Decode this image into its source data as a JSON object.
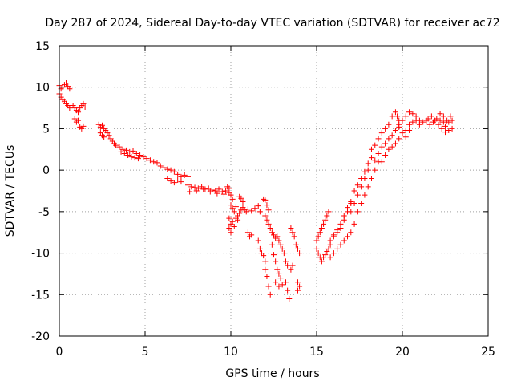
{
  "chart_data": {
    "type": "scatter",
    "title": "Day 287 of 2024, Sidereal Day-to-day VTEC variation (SDTVAR) for receiver ac72",
    "xlabel": "GPS time / hours",
    "ylabel": "SDTVAR / TECUs",
    "xlim": [
      0,
      25
    ],
    "ylim": [
      -20,
      15
    ],
    "xticks": [
      0,
      5,
      10,
      15,
      20,
      25
    ],
    "yticks": [
      -20,
      -15,
      -10,
      -5,
      0,
      5,
      10,
      15
    ],
    "xtick_labels": [
      "0",
      "5",
      "10",
      "15",
      "20",
      "25"
    ],
    "ytick_labels": [
      "-20",
      "-15",
      "-10",
      "-5",
      "0",
      "5",
      "10",
      "15"
    ],
    "grid": true,
    "marker": "+",
    "color": "#ff0000",
    "series": [
      {
        "name": "SDTVAR",
        "points": [
          [
            0.0,
            10.2
          ],
          [
            0.1,
            9.8
          ],
          [
            0.2,
            10.0
          ],
          [
            0.3,
            10.3
          ],
          [
            0.4,
            10.5
          ],
          [
            0.5,
            10.1
          ],
          [
            0.6,
            9.8
          ],
          [
            0.0,
            9.2
          ],
          [
            0.1,
            8.8
          ],
          [
            0.2,
            8.5
          ],
          [
            0.3,
            8.3
          ],
          [
            0.4,
            8.0
          ],
          [
            0.5,
            7.8
          ],
          [
            0.6,
            7.5
          ],
          [
            0.8,
            7.8
          ],
          [
            0.9,
            7.5
          ],
          [
            1.0,
            7.2
          ],
          [
            1.1,
            7.0
          ],
          [
            1.2,
            7.5
          ],
          [
            1.3,
            7.8
          ],
          [
            1.4,
            8.0
          ],
          [
            1.5,
            7.6
          ],
          [
            0.9,
            6.2
          ],
          [
            1.0,
            5.8
          ],
          [
            1.1,
            6.0
          ],
          [
            1.2,
            5.2
          ],
          [
            1.3,
            5.0
          ],
          [
            1.4,
            5.3
          ],
          [
            2.3,
            5.5
          ],
          [
            2.4,
            5.2
          ],
          [
            2.5,
            5.4
          ],
          [
            2.6,
            5.0
          ],
          [
            2.7,
            4.8
          ],
          [
            2.8,
            4.5
          ],
          [
            2.9,
            4.2
          ],
          [
            2.4,
            4.5
          ],
          [
            2.5,
            4.2
          ],
          [
            2.6,
            4.0
          ],
          [
            3.0,
            3.8
          ],
          [
            3.1,
            3.5
          ],
          [
            3.2,
            3.2
          ],
          [
            3.3,
            3.0
          ],
          [
            3.5,
            2.8
          ],
          [
            3.7,
            2.5
          ],
          [
            3.9,
            2.4
          ],
          [
            4.1,
            2.2
          ],
          [
            4.3,
            2.3
          ],
          [
            4.5,
            2.0
          ],
          [
            4.7,
            1.8
          ],
          [
            3.6,
            2.2
          ],
          [
            3.8,
            2.0
          ],
          [
            4.0,
            1.8
          ],
          [
            4.2,
            1.6
          ],
          [
            4.4,
            1.5
          ],
          [
            4.6,
            1.4
          ],
          [
            4.9,
            1.6
          ],
          [
            5.1,
            1.4
          ],
          [
            5.3,
            1.2
          ],
          [
            5.5,
            1.0
          ],
          [
            5.7,
            0.9
          ],
          [
            5.9,
            0.5
          ],
          [
            6.1,
            0.3
          ],
          [
            6.3,
            0.1
          ],
          [
            6.5,
            0.0
          ],
          [
            6.7,
            -0.2
          ],
          [
            6.9,
            -0.5
          ],
          [
            7.1,
            -0.8
          ],
          [
            6.3,
            -1.0
          ],
          [
            6.5,
            -1.3
          ],
          [
            6.7,
            -1.5
          ],
          [
            6.9,
            -1.2
          ],
          [
            7.1,
            -1.4
          ],
          [
            7.3,
            -0.6
          ],
          [
            7.5,
            -0.8
          ],
          [
            7.5,
            -1.8
          ],
          [
            7.7,
            -2.0
          ],
          [
            7.9,
            -2.1
          ],
          [
            8.1,
            -2.2
          ],
          [
            8.3,
            -2.0
          ],
          [
            8.5,
            -2.3
          ],
          [
            8.7,
            -2.2
          ],
          [
            8.9,
            -2.4
          ],
          [
            9.1,
            -2.5
          ],
          [
            9.3,
            -2.3
          ],
          [
            9.5,
            -2.6
          ],
          [
            9.7,
            -2.5
          ],
          [
            9.9,
            -2.7
          ],
          [
            7.6,
            -2.6
          ],
          [
            8.0,
            -2.5
          ],
          [
            8.4,
            -2.3
          ],
          [
            8.8,
            -2.6
          ],
          [
            9.2,
            -2.8
          ],
          [
            9.6,
            -2.9
          ],
          [
            9.8,
            -2.0
          ],
          [
            9.9,
            -2.2
          ],
          [
            10.0,
            -3.0
          ],
          [
            10.1,
            -3.5
          ],
          [
            10.0,
            -4.2
          ],
          [
            10.1,
            -4.6
          ],
          [
            10.2,
            -5.0
          ],
          [
            10.3,
            -4.4
          ],
          [
            10.4,
            -5.5
          ],
          [
            10.5,
            -5.2
          ],
          [
            10.6,
            -4.8
          ],
          [
            10.7,
            -4.5
          ],
          [
            10.8,
            -4.8
          ],
          [
            10.9,
            -5.0
          ],
          [
            11.0,
            -4.7
          ],
          [
            11.2,
            -4.9
          ],
          [
            11.4,
            -4.6
          ],
          [
            11.6,
            -4.3
          ],
          [
            11.7,
            -5.0
          ],
          [
            9.9,
            -5.8
          ],
          [
            10.0,
            -6.5
          ],
          [
            10.1,
            -6.2
          ],
          [
            10.3,
            -5.8
          ],
          [
            9.9,
            -7.0
          ],
          [
            10.0,
            -7.5
          ],
          [
            10.2,
            -6.8
          ],
          [
            10.4,
            -6.0
          ],
          [
            10.5,
            -3.2
          ],
          [
            10.6,
            -3.4
          ],
          [
            10.7,
            -3.8
          ],
          [
            11.0,
            -7.5
          ],
          [
            11.1,
            -8.0
          ],
          [
            11.2,
            -7.8
          ],
          [
            11.6,
            -8.5
          ],
          [
            11.7,
            -9.5
          ],
          [
            11.8,
            -10.0
          ],
          [
            11.9,
            -10.3
          ],
          [
            12.0,
            -11.0
          ],
          [
            11.9,
            -3.5
          ],
          [
            12.0,
            -3.6
          ],
          [
            12.1,
            -4.2
          ],
          [
            12.2,
            -4.8
          ],
          [
            12.0,
            -5.5
          ],
          [
            12.1,
            -6.0
          ],
          [
            12.2,
            -6.5
          ],
          [
            12.3,
            -7.0
          ],
          [
            12.4,
            -7.5
          ],
          [
            12.0,
            -12.0
          ],
          [
            12.1,
            -12.8
          ],
          [
            12.2,
            -14.0
          ],
          [
            12.3,
            -15.0
          ],
          [
            12.4,
            -9.0
          ],
          [
            12.5,
            -10.2
          ],
          [
            12.6,
            -11.0
          ],
          [
            12.7,
            -12.0
          ],
          [
            12.8,
            -12.5
          ],
          [
            12.9,
            -13.0
          ],
          [
            12.5,
            -7.8
          ],
          [
            12.6,
            -8.2
          ],
          [
            12.7,
            -8.0
          ],
          [
            12.8,
            -8.5
          ],
          [
            12.9,
            -9.0
          ],
          [
            13.0,
            -9.5
          ],
          [
            13.1,
            -10.0
          ],
          [
            13.2,
            -11.0
          ],
          [
            13.3,
            -11.5
          ],
          [
            12.6,
            -13.5
          ],
          [
            12.8,
            -14.0
          ],
          [
            13.0,
            -13.8
          ],
          [
            13.2,
            -13.5
          ],
          [
            13.3,
            -14.5
          ],
          [
            13.4,
            -15.5
          ],
          [
            13.5,
            -7.0
          ],
          [
            13.6,
            -7.5
          ],
          [
            13.7,
            -8.0
          ],
          [
            13.8,
            -9.0
          ],
          [
            13.9,
            -9.5
          ],
          [
            14.0,
            -10.0
          ],
          [
            13.5,
            -12.0
          ],
          [
            13.6,
            -11.5
          ],
          [
            13.9,
            -13.5
          ],
          [
            14.0,
            -14.0
          ],
          [
            13.9,
            -14.5
          ],
          [
            15.0,
            -9.5
          ],
          [
            15.1,
            -10.0
          ],
          [
            15.2,
            -10.5
          ],
          [
            15.3,
            -11.0
          ],
          [
            15.4,
            -10.5
          ],
          [
            15.5,
            -10.2
          ],
          [
            15.6,
            -9.8
          ],
          [
            15.7,
            -9.5
          ],
          [
            15.8,
            -9.0
          ],
          [
            15.0,
            -8.5
          ],
          [
            15.1,
            -8.0
          ],
          [
            15.2,
            -7.5
          ],
          [
            15.3,
            -7.0
          ],
          [
            15.4,
            -6.5
          ],
          [
            15.5,
            -6.0
          ],
          [
            15.6,
            -5.5
          ],
          [
            15.7,
            -5.0
          ],
          [
            15.8,
            -8.5
          ],
          [
            16.0,
            -8.0
          ],
          [
            16.2,
            -7.5
          ],
          [
            16.4,
            -7.0
          ],
          [
            16.6,
            -6.0
          ],
          [
            16.8,
            -5.0
          ],
          [
            17.0,
            -4.0
          ],
          [
            16.0,
            -7.8
          ],
          [
            16.2,
            -7.2
          ],
          [
            16.4,
            -6.5
          ],
          [
            16.6,
            -5.5
          ],
          [
            16.8,
            -4.5
          ],
          [
            17.0,
            -3.8
          ],
          [
            15.8,
            -10.5
          ],
          [
            16.0,
            -10.0
          ],
          [
            16.2,
            -9.5
          ],
          [
            16.4,
            -9.0
          ],
          [
            16.6,
            -8.5
          ],
          [
            16.8,
            -8.0
          ],
          [
            17.0,
            -7.5
          ],
          [
            17.2,
            -6.5
          ],
          [
            17.0,
            -5.0
          ],
          [
            17.2,
            -4.0
          ],
          [
            17.4,
            -3.0
          ],
          [
            17.6,
            -2.0
          ],
          [
            17.8,
            -1.0
          ],
          [
            18.0,
            0.0
          ],
          [
            17.2,
            -2.5
          ],
          [
            17.4,
            -1.8
          ],
          [
            17.6,
            -1.0
          ],
          [
            17.8,
            -0.2
          ],
          [
            18.0,
            0.8
          ],
          [
            18.2,
            1.5
          ],
          [
            17.4,
            -5.0
          ],
          [
            17.6,
            -4.0
          ],
          [
            17.8,
            -3.0
          ],
          [
            18.0,
            -2.0
          ],
          [
            18.2,
            -1.0
          ],
          [
            18.4,
            0.0
          ],
          [
            18.6,
            1.0
          ],
          [
            18.2,
            2.5
          ],
          [
            18.4,
            3.0
          ],
          [
            18.6,
            3.8
          ],
          [
            18.8,
            4.5
          ],
          [
            19.0,
            5.0
          ],
          [
            19.2,
            5.5
          ],
          [
            19.4,
            6.5
          ],
          [
            19.6,
            7.0
          ],
          [
            19.7,
            6.5
          ],
          [
            19.8,
            6.0
          ],
          [
            18.4,
            1.2
          ],
          [
            18.6,
            2.0
          ],
          [
            18.8,
            2.8
          ],
          [
            19.0,
            3.2
          ],
          [
            19.2,
            3.8
          ],
          [
            19.4,
            4.2
          ],
          [
            19.6,
            4.8
          ],
          [
            19.8,
            5.2
          ],
          [
            18.8,
            1.0
          ],
          [
            19.0,
            1.8
          ],
          [
            19.2,
            2.5
          ],
          [
            19.4,
            2.8
          ],
          [
            19.6,
            3.2
          ],
          [
            19.8,
            3.8
          ],
          [
            20.0,
            4.5
          ],
          [
            20.2,
            4.8
          ],
          [
            20.4,
            5.5
          ],
          [
            19.8,
            5.5
          ],
          [
            20.0,
            6.0
          ],
          [
            20.2,
            6.5
          ],
          [
            20.4,
            7.0
          ],
          [
            20.6,
            6.8
          ],
          [
            20.8,
            6.0
          ],
          [
            21.0,
            5.5
          ],
          [
            20.2,
            4.0
          ],
          [
            20.4,
            4.8
          ],
          [
            20.6,
            5.8
          ],
          [
            20.8,
            6.5
          ],
          [
            21.0,
            6.0
          ],
          [
            21.2,
            5.8
          ],
          [
            21.4,
            6.0
          ],
          [
            21.6,
            5.5
          ],
          [
            21.8,
            5.8
          ],
          [
            22.0,
            6.2
          ],
          [
            22.2,
            6.0
          ],
          [
            22.4,
            5.8
          ],
          [
            21.5,
            6.2
          ],
          [
            21.7,
            6.5
          ],
          [
            21.9,
            6.0
          ],
          [
            22.1,
            5.5
          ],
          [
            22.3,
            5.0
          ],
          [
            22.5,
            5.3
          ],
          [
            22.7,
            5.8
          ],
          [
            22.9,
            6.0
          ],
          [
            22.2,
            6.8
          ],
          [
            22.4,
            6.5
          ],
          [
            22.6,
            6.0
          ],
          [
            22.8,
            6.5
          ],
          [
            22.9,
            5.0
          ],
          [
            22.7,
            4.8
          ],
          [
            22.5,
            4.6
          ]
        ]
      }
    ]
  }
}
